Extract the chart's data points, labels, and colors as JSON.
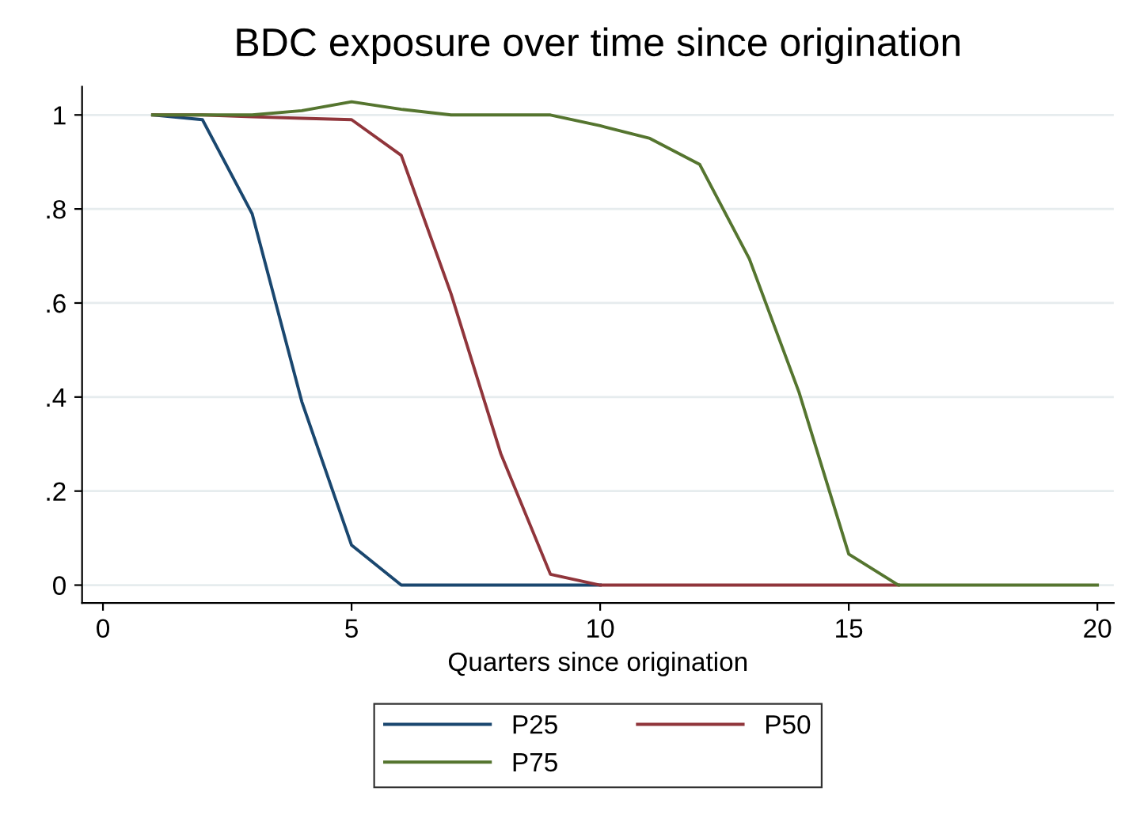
{
  "chart_data": {
    "type": "line",
    "title": "BDC exposure over time since origination",
    "xlabel": "Quarters since origination",
    "x": [
      1,
      2,
      3,
      4,
      5,
      6,
      7,
      8,
      9,
      10,
      11,
      12,
      13,
      14,
      15,
      16,
      17,
      18,
      19,
      20
    ],
    "series": [
      {
        "name": "P25",
        "color": "#1a476f",
        "values": [
          1,
          0.99,
          0.79,
          0.39,
          0.085,
          0,
          0,
          0,
          0,
          0,
          null,
          null,
          null,
          null,
          null,
          null,
          null,
          null,
          null,
          null
        ]
      },
      {
        "name": "P50",
        "color": "#90353b",
        "values": [
          1,
          1,
          0.996,
          0.993,
          0.99,
          0.914,
          0.62,
          0.28,
          0.023,
          0,
          0,
          0,
          0,
          0,
          0,
          0,
          null,
          null,
          null,
          null
        ]
      },
      {
        "name": "P75",
        "color": "#55752f",
        "values": [
          1,
          1,
          1,
          1.009,
          1.028,
          1.012,
          1,
          1,
          1,
          0.977,
          0.95,
          0.895,
          0.694,
          0.41,
          0.066,
          0,
          0,
          0,
          0,
          0
        ]
      }
    ],
    "xlim": [
      -0.42,
      20.33
    ],
    "ylim": [
      -0.038,
      1.06
    ],
    "xticks": [
      0,
      5,
      10,
      15,
      20
    ],
    "yticks": [
      {
        "value": 0,
        "label": "0"
      },
      {
        "value": 0.2,
        "label": ".2"
      },
      {
        "value": 0.4,
        "label": ".4"
      },
      {
        "value": 0.6,
        "label": ".6"
      },
      {
        "value": 0.8,
        "label": ".8"
      },
      {
        "value": 1,
        "label": "1"
      }
    ],
    "grid": "y",
    "legend": "bottom",
    "line_style": "solid",
    "marker": "none"
  }
}
